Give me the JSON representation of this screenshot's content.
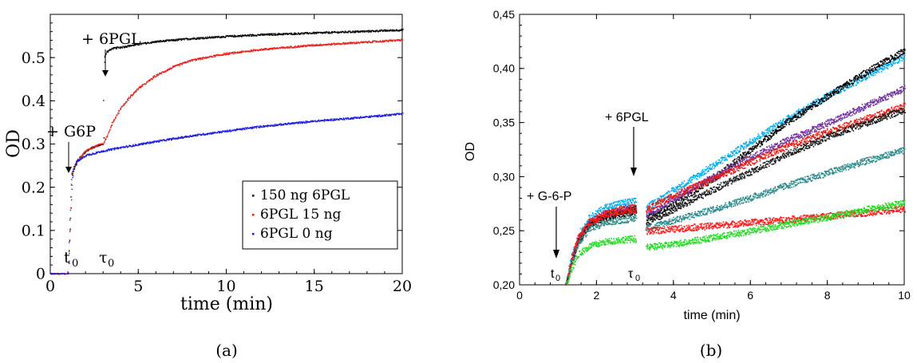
{
  "chart_data": [
    {
      "panel_label": "(a)",
      "type": "scatter",
      "xlabel": "time (min)",
      "ylabel": "OD",
      "xlim": [
        0,
        20
      ],
      "ylim": [
        0,
        0.6
      ],
      "xticks": [
        "0",
        "5",
        "10",
        "15",
        "20"
      ],
      "yticks": [
        "0",
        "0.1",
        "0.2",
        "0.3",
        "0.4",
        "0.5"
      ],
      "xtick_values": [
        0,
        5,
        10,
        15,
        20
      ],
      "ytick_values": [
        0,
        0.1,
        0.2,
        0.3,
        0.4,
        0.5
      ],
      "legend_position": "lower-right",
      "annotations": {
        "g6p": "+ G6P",
        "pgl": "+ 6PGL",
        "t0": "t",
        "t0_sub": "0",
        "tau0": "τ",
        "tau0_sub": "0"
      },
      "series": [
        {
          "name": "150 ng 6PGL",
          "color": "#000000",
          "x": [
            0,
            1.0,
            1.2,
            1.3,
            1.5,
            2.0,
            2.5,
            3.0,
            3.05,
            3.2,
            3.5,
            4,
            5,
            6,
            8,
            10,
            12,
            15,
            18,
            20
          ],
          "y": [
            0,
            0,
            0.23,
            0.245,
            0.262,
            0.285,
            0.295,
            0.302,
            0.5,
            0.515,
            0.522,
            0.525,
            0.532,
            0.538,
            0.545,
            0.55,
            0.554,
            0.558,
            0.562,
            0.565
          ]
        },
        {
          "name": "6PGL 15 ng",
          "color": "#e8201a",
          "x": [
            0,
            1.0,
            1.2,
            1.3,
            1.5,
            2.0,
            2.5,
            3.0,
            3.2,
            3.5,
            4,
            4.5,
            5,
            6,
            7,
            8,
            10,
            12,
            15,
            18,
            20
          ],
          "y": [
            0,
            0,
            0.23,
            0.245,
            0.262,
            0.285,
            0.295,
            0.303,
            0.32,
            0.35,
            0.385,
            0.41,
            0.43,
            0.46,
            0.48,
            0.495,
            0.51,
            0.52,
            0.53,
            0.537,
            0.542
          ]
        },
        {
          "name": "6PGL 0 ng",
          "color": "#1a1ae0",
          "x": [
            0,
            1.0,
            1.2,
            1.3,
            1.5,
            2,
            3,
            4,
            5,
            6,
            8,
            10,
            12,
            15,
            18,
            20
          ],
          "y": [
            0,
            0,
            0.22,
            0.24,
            0.26,
            0.275,
            0.285,
            0.293,
            0.3,
            0.307,
            0.32,
            0.331,
            0.342,
            0.354,
            0.364,
            0.371
          ]
        }
      ]
    },
    {
      "panel_label": "(b)",
      "type": "scatter",
      "xlabel": "time (min)",
      "ylabel": "OD",
      "xlim": [
        0,
        10
      ],
      "ylim": [
        0.2,
        0.45
      ],
      "xticks": [
        "0",
        "2",
        "4",
        "6",
        "8",
        "10"
      ],
      "yticks": [
        "0,20",
        "0,25",
        "0,30",
        "0,35",
        "0,40",
        "0,45"
      ],
      "xtick_values": [
        0,
        2,
        4,
        6,
        8,
        10
      ],
      "ytick_values": [
        0.2,
        0.25,
        0.3,
        0.35,
        0.4,
        0.45
      ],
      "annotations": {
        "g6p": "+ G-6-P",
        "pgl": "+ 6PGL",
        "t0": "t",
        "t0_sub": "0",
        "tau0": "τ",
        "tau0_sub": "0"
      },
      "series": [
        {
          "color": "#00aeef",
          "x": [
            1.2,
            1.3,
            1.5,
            1.8,
            2.2,
            2.6,
            3.0,
            3.3,
            4,
            5,
            6,
            7,
            8,
            9,
            10
          ],
          "y": [
            0.2,
            0.22,
            0.245,
            0.262,
            0.272,
            0.276,
            0.278,
            0.272,
            0.288,
            0.31,
            0.333,
            0.355,
            0.375,
            0.393,
            0.412
          ]
        },
        {
          "color": "#000000",
          "x": [
            1.2,
            1.3,
            1.5,
            1.8,
            2.2,
            2.6,
            3.0,
            3.3,
            4,
            5,
            6,
            7,
            8,
            9,
            10
          ],
          "y": [
            0.2,
            0.215,
            0.24,
            0.255,
            0.262,
            0.266,
            0.268,
            0.262,
            0.275,
            0.298,
            0.325,
            0.352,
            0.375,
            0.397,
            0.417
          ]
        },
        {
          "color": "#7030a0",
          "x": [
            1.2,
            1.3,
            1.5,
            1.8,
            2.2,
            2.6,
            3.0,
            3.3,
            4,
            5,
            6,
            7,
            8,
            9,
            10
          ],
          "y": [
            0.2,
            0.218,
            0.242,
            0.258,
            0.266,
            0.27,
            0.272,
            0.265,
            0.28,
            0.3,
            0.318,
            0.335,
            0.35,
            0.366,
            0.382
          ]
        },
        {
          "color": "#e8201a",
          "x": [
            1.2,
            1.3,
            1.5,
            1.8,
            2.2,
            2.6,
            3.0,
            3.3,
            4,
            5,
            6,
            7,
            8,
            9,
            10
          ],
          "y": [
            0.2,
            0.217,
            0.242,
            0.258,
            0.266,
            0.27,
            0.272,
            0.27,
            0.283,
            0.298,
            0.314,
            0.329,
            0.342,
            0.354,
            0.366
          ]
        },
        {
          "color": "#1b1b1b",
          "x": [
            1.2,
            1.3,
            1.5,
            1.8,
            2.2,
            2.6,
            3.0,
            3.3,
            4,
            5,
            6,
            7,
            8,
            9,
            10
          ],
          "y": [
            0.2,
            0.216,
            0.24,
            0.256,
            0.264,
            0.268,
            0.27,
            0.258,
            0.27,
            0.288,
            0.305,
            0.322,
            0.337,
            0.35,
            0.362
          ]
        },
        {
          "color": "#2e8b8b",
          "x": [
            1.2,
            1.3,
            1.5,
            1.8,
            2.2,
            2.6,
            3.0,
            3.3,
            4,
            5,
            6,
            7,
            8,
            9,
            10
          ],
          "y": [
            0.2,
            0.215,
            0.238,
            0.252,
            0.258,
            0.26,
            0.262,
            0.253,
            0.26,
            0.27,
            0.281,
            0.293,
            0.304,
            0.315,
            0.325
          ]
        },
        {
          "color": "#ff1a1a",
          "x": [
            1.2,
            1.3,
            1.5,
            1.8,
            2.2,
            2.6,
            3.0,
            3.3,
            4,
            5,
            6,
            7,
            8,
            9,
            10
          ],
          "y": [
            0.2,
            0.218,
            0.243,
            0.258,
            0.265,
            0.268,
            0.27,
            0.25,
            0.252,
            0.255,
            0.258,
            0.261,
            0.264,
            0.267,
            0.271
          ]
        },
        {
          "color": "#22dd22",
          "x": [
            1.2,
            1.3,
            1.5,
            1.8,
            2.2,
            2.6,
            3.0,
            3.3,
            4,
            5,
            6,
            7,
            8,
            9,
            10
          ],
          "y": [
            0.2,
            0.212,
            0.228,
            0.236,
            0.24,
            0.242,
            0.243,
            0.235,
            0.238,
            0.244,
            0.25,
            0.257,
            0.263,
            0.27,
            0.276
          ]
        }
      ]
    }
  ]
}
